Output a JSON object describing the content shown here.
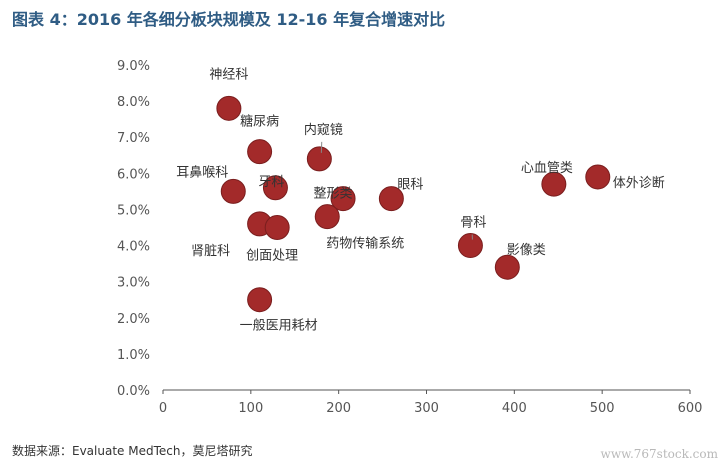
{
  "title": "图表 4：2016 年各细分板块规模及 12-16 年复合增速对比",
  "source": "数据来源：Evaluate MedTech，莫尼塔研究",
  "watermark": "www.767stock.com",
  "colors": {
    "marker": "#a32a2a",
    "marker_edge": "#7a1e1e",
    "title": "#2f5c84",
    "axis": "#555555",
    "leader": "#888888"
  },
  "chart_data": {
    "type": "scatter",
    "title": "2016 年各细分板块规模及 12-16 年复合增速对比",
    "xlabel": "",
    "ylabel": "",
    "xlim": [
      0,
      600
    ],
    "ylim": [
      0,
      9
    ],
    "x_ticks": [
      "0",
      "100",
      "200",
      "300",
      "400",
      "500",
      "600"
    ],
    "y_ticks": [
      "0.0%",
      "1.0%",
      "2.0%",
      "3.0%",
      "4.0%",
      "5.0%",
      "6.0%",
      "7.0%",
      "8.0%",
      "9.0%"
    ],
    "grid": false,
    "points": [
      {
        "name": "神经科",
        "x": 75,
        "y": 7.8
      },
      {
        "name": "糖尿病",
        "x": 110,
        "y": 6.6
      },
      {
        "name": "内窥镜",
        "x": 178,
        "y": 6.4
      },
      {
        "name": "耳鼻喉科",
        "x": 80,
        "y": 5.5
      },
      {
        "name": "牙科",
        "x": 128,
        "y": 5.6
      },
      {
        "name": "整形类",
        "x": 205,
        "y": 5.3
      },
      {
        "name": "眼科",
        "x": 260,
        "y": 5.3
      },
      {
        "name": "心血管类",
        "x": 445,
        "y": 5.7
      },
      {
        "name": "体外诊断",
        "x": 495,
        "y": 5.9
      },
      {
        "name": "肾脏科",
        "x": 110,
        "y": 4.6
      },
      {
        "name": "创面处理",
        "x": 130,
        "y": 4.5
      },
      {
        "name": "药物传输系统",
        "x": 187,
        "y": 4.8
      },
      {
        "name": "骨科",
        "x": 350,
        "y": 4.0
      },
      {
        "name": "影像类",
        "x": 392,
        "y": 3.4
      },
      {
        "name": "一般医用耗材",
        "x": 110,
        "y": 2.5
      }
    ]
  }
}
